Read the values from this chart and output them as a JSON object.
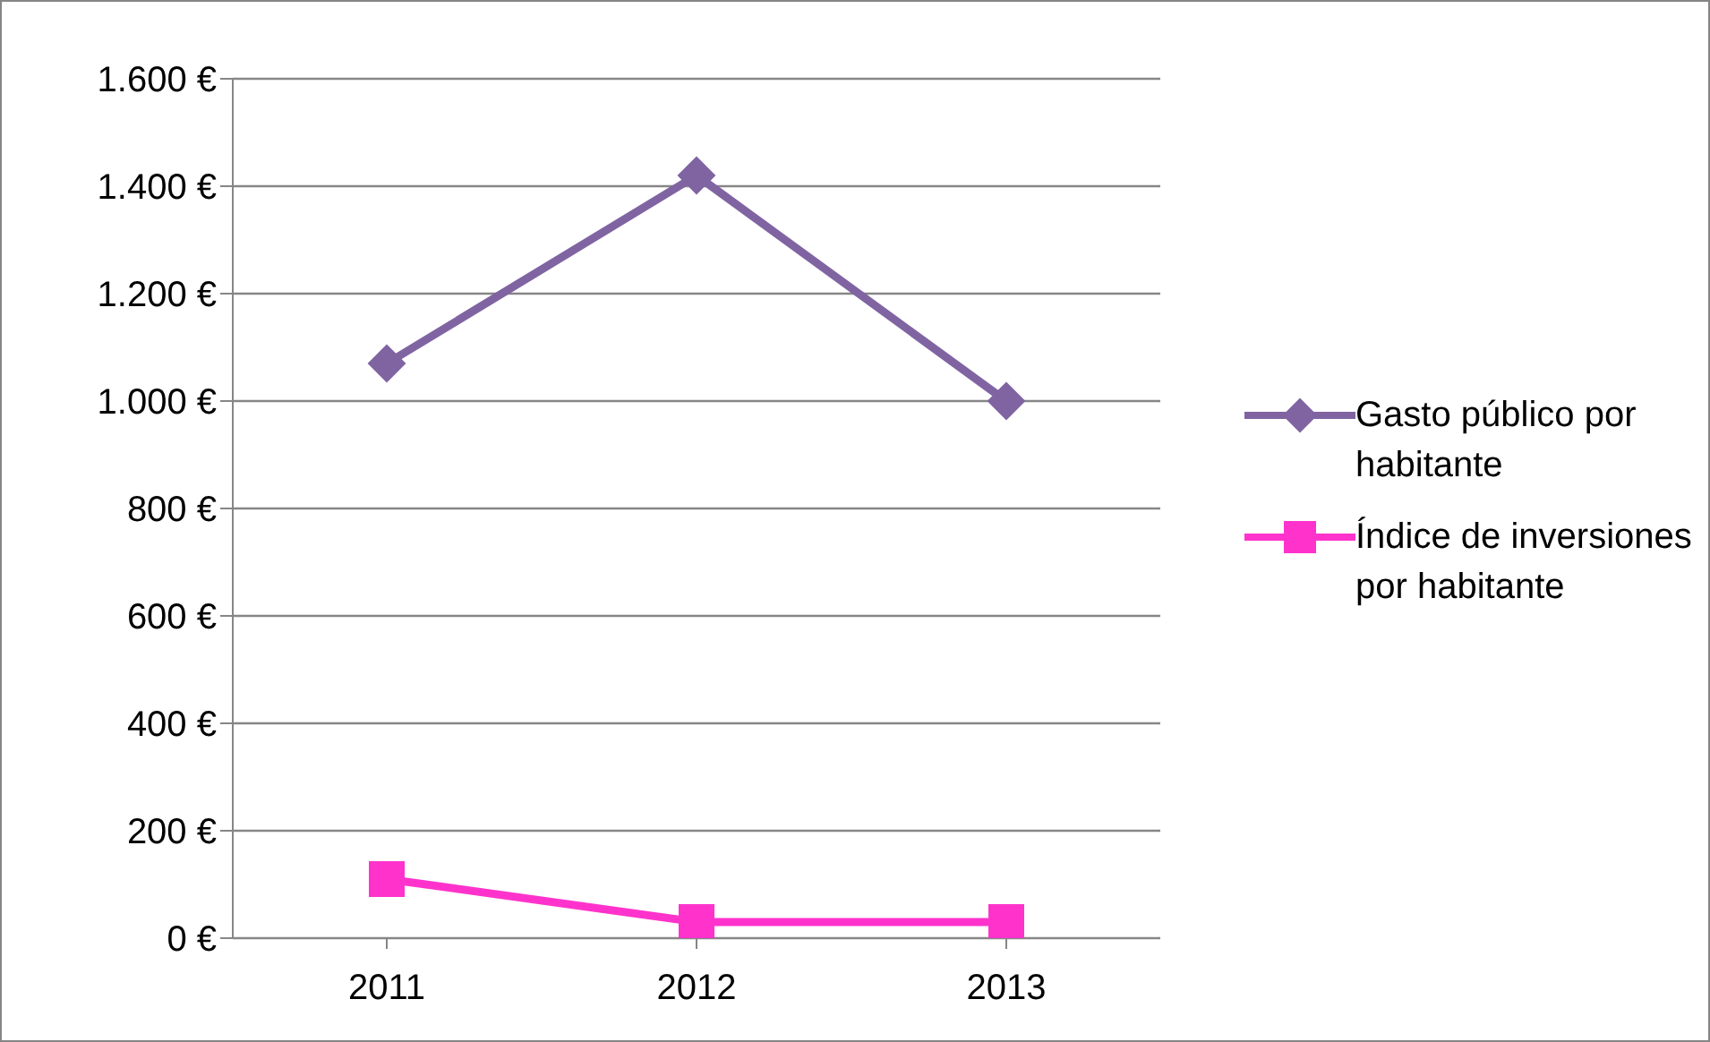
{
  "chart_data": {
    "type": "line",
    "categories": [
      "2011",
      "2012",
      "2013"
    ],
    "series": [
      {
        "name": "Gasto público por habitante",
        "color": "#8064a2",
        "values": [
          1070,
          1420,
          1000
        ],
        "marker": "diamond"
      },
      {
        "name": "Índice de inversiones por habitante",
        "color": "#ff33cc",
        "values": [
          110,
          30,
          30
        ],
        "marker": "square"
      }
    ],
    "ylim": [
      0,
      1600
    ],
    "yticks": [
      {
        "value": 0,
        "label": "0 €"
      },
      {
        "value": 200,
        "label": "200 €"
      },
      {
        "value": 400,
        "label": "400 €"
      },
      {
        "value": 600,
        "label": "600 €"
      },
      {
        "value": 800,
        "label": "800 €"
      },
      {
        "value": 1000,
        "label": "1.000 €"
      },
      {
        "value": 1200,
        "label": "1.200 €"
      },
      {
        "value": 1400,
        "label": "1.400 €"
      },
      {
        "value": 1600,
        "label": "1.600 €"
      }
    ],
    "grid": "y",
    "legend": "right",
    "line_style": "solid"
  }
}
